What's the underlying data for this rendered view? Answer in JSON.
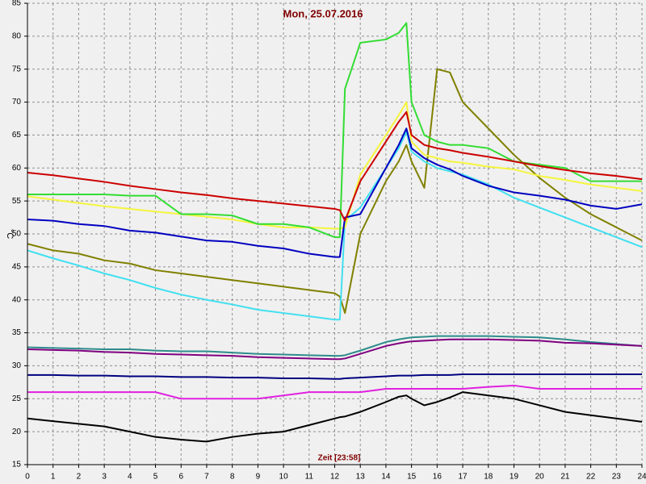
{
  "chart_data": {
    "type": "line",
    "title": "Mon, 25.07.2016",
    "x_label": "Zeit [23:58]",
    "y_label": "°C",
    "x": [
      0,
      1,
      2,
      3,
      4,
      5,
      6,
      7,
      8,
      9,
      10,
      11,
      12,
      12.2,
      12.4,
      13,
      14,
      14.5,
      14.8,
      15,
      15.5,
      16,
      16.5,
      17,
      18,
      19,
      20,
      21,
      22,
      23,
      24
    ],
    "xlim": [
      0,
      24
    ],
    "xticks": [
      0,
      1,
      2,
      3,
      4,
      5,
      6,
      7,
      8,
      9,
      10,
      11,
      12,
      13,
      14,
      15,
      16,
      17,
      18,
      19,
      20,
      21,
      22,
      23,
      24
    ],
    "ylim": [
      15,
      85
    ],
    "yticks": [
      15,
      20,
      25,
      30,
      35,
      40,
      45,
      50,
      55,
      60,
      65,
      70,
      75,
      80,
      85
    ],
    "grid": true,
    "series": [
      {
        "color": "#808000",
        "values": [
          48.5,
          47.5,
          47,
          46,
          45.5,
          44.5,
          44,
          43.5,
          43,
          42.5,
          42,
          41.5,
          41,
          40.5,
          38,
          50,
          58,
          61,
          63.5,
          61,
          57,
          75,
          74.5,
          70,
          66,
          62,
          58.5,
          55.5,
          53,
          51,
          49
        ]
      },
      {
        "color": "#40e0f0",
        "values": [
          47.5,
          46.3,
          45.2,
          44,
          43,
          41.8,
          40.8,
          40,
          39.3,
          38.5,
          38,
          37.5,
          37,
          37,
          52,
          54,
          60,
          63,
          65.5,
          62.5,
          61,
          60,
          59.5,
          59,
          57.5,
          55.5,
          54,
          52.5,
          51,
          49.5,
          48
        ]
      },
      {
        "color": "#f5f53d",
        "values": [
          55.7,
          55.2,
          54.7,
          54.2,
          53.8,
          53.4,
          53,
          52.6,
          52.2,
          51.5,
          51,
          51,
          50.8,
          50.8,
          51,
          59,
          65,
          68,
          70,
          64,
          62,
          61.5,
          61,
          60.8,
          60.2,
          59.8,
          58.8,
          58.2,
          57.5,
          57,
          56.5
        ]
      },
      {
        "color": "#33dd33",
        "values": [
          56,
          56,
          56,
          56,
          55.8,
          55.8,
          53,
          53,
          52.8,
          51.5,
          51.5,
          51,
          49.5,
          49.5,
          72,
          79,
          79.5,
          80.5,
          82,
          70,
          65,
          64,
          63.5,
          63.5,
          63,
          61,
          60.5,
          60,
          58,
          58,
          58
        ]
      },
      {
        "color": "#0000c0",
        "values": [
          52.2,
          52,
          51.5,
          51.2,
          50.5,
          50.2,
          49.6,
          49,
          48.8,
          48.2,
          47.8,
          47,
          46.5,
          46.5,
          52.5,
          53,
          60,
          63.5,
          66,
          63,
          61.5,
          60.5,
          59.8,
          58.8,
          57.3,
          56.3,
          55.8,
          55.2,
          54.3,
          53.8,
          54.5
        ]
      },
      {
        "color": "#cc0000",
        "values": [
          59.3,
          58.9,
          58.4,
          57.9,
          57.3,
          56.8,
          56.3,
          55.9,
          55.4,
          55,
          54.6,
          54.2,
          53.8,
          53.6,
          52,
          58,
          64,
          67,
          68.5,
          65,
          63.5,
          63,
          62.7,
          62.3,
          61.7,
          61,
          60.3,
          59.7,
          59.2,
          58.8,
          58.3
        ]
      },
      {
        "color": "#2e8b8b",
        "values": [
          32.8,
          32.7,
          32.6,
          32.5,
          32.5,
          32.3,
          32.2,
          32.2,
          32,
          31.8,
          31.7,
          31.6,
          31.5,
          31.5,
          31.6,
          32.3,
          33.6,
          34,
          34.2,
          34.3,
          34.4,
          34.5,
          34.5,
          34.5,
          34.5,
          34.4,
          34.3,
          34,
          33.6,
          33.3,
          33
        ]
      },
      {
        "color": "#800080",
        "values": [
          32.5,
          32.4,
          32.3,
          32.1,
          32,
          31.8,
          31.7,
          31.6,
          31.5,
          31.3,
          31.2,
          31.1,
          31,
          31,
          31.1,
          31.8,
          33,
          33.4,
          33.6,
          33.7,
          33.8,
          33.9,
          34,
          34,
          34,
          33.9,
          33.8,
          33.5,
          33.4,
          33.2,
          33
        ]
      },
      {
        "color": "#000080",
        "values": [
          28.6,
          28.6,
          28.5,
          28.5,
          28.4,
          28.4,
          28.3,
          28.3,
          28.2,
          28.2,
          28.1,
          28.1,
          28,
          28,
          28.1,
          28.2,
          28.4,
          28.5,
          28.5,
          28.5,
          28.6,
          28.6,
          28.6,
          28.7,
          28.7,
          28.7,
          28.7,
          28.7,
          28.7,
          28.7,
          28.7
        ]
      },
      {
        "color": "#e020e0",
        "values": [
          26,
          26,
          26,
          26,
          26,
          26,
          25,
          25,
          25,
          25,
          25.5,
          26,
          26,
          26,
          26,
          26,
          26.5,
          26.5,
          26.5,
          26.5,
          26.5,
          26.5,
          26.5,
          26.5,
          26.8,
          27,
          26.5,
          26.5,
          26.5,
          26.5,
          26.5
        ]
      },
      {
        "color": "#000000",
        "values": [
          22,
          21.6,
          21.2,
          20.8,
          20,
          19.2,
          18.8,
          18.5,
          19.2,
          19.7,
          20,
          21,
          22,
          22.2,
          22.3,
          23,
          24.5,
          25.3,
          25.5,
          25,
          24,
          24.5,
          25.2,
          26,
          25.5,
          25,
          24,
          23,
          22.5,
          22,
          21.5
        ]
      }
    ]
  }
}
